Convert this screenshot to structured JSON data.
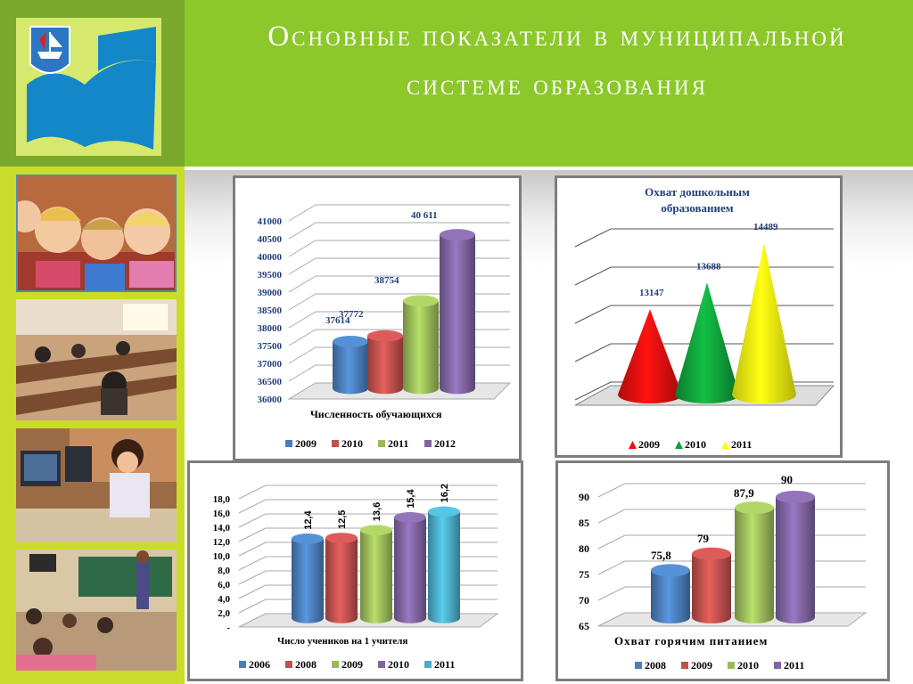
{
  "page": {
    "title": "Основные показатели в муниципальной системе образования"
  },
  "logo": {
    "icon": "coat-of-arms-icon"
  },
  "photos": [
    {
      "name": "photo-children-icon"
    },
    {
      "name": "photo-classroom-desks-icon"
    },
    {
      "name": "photo-computer-class-icon"
    },
    {
      "name": "photo-classroom-board-icon"
    }
  ],
  "colors": {
    "blue": "#4a7ebb",
    "red": "#c0504d",
    "green": "#9bbb59",
    "purple": "#8064a2",
    "cyan": "#4bacc6",
    "cone_red": "#e8100e",
    "cone_green": "#10a03a",
    "cone_yellow": "#ffff10",
    "header_green": "#8cc82a",
    "sidebar": "#c9dc2a"
  },
  "chart_data": [
    {
      "type": "bar",
      "title": "Численность обучающихся",
      "categories": [
        "2009",
        "2010",
        "2011",
        "2012"
      ],
      "values": [
        37614,
        37772,
        38754,
        40611
      ],
      "value_labels": [
        "37614",
        "37772",
        "38754",
        "40 611"
      ],
      "ylim": [
        36000,
        41000
      ],
      "yticks": [
        "36000",
        "36500",
        "37000",
        "37500",
        "38000",
        "38500",
        "39000",
        "39500",
        "40000",
        "40500",
        "41000"
      ],
      "legend": [
        "2009",
        "2010",
        "2011",
        "2012"
      ],
      "legend_position": "bottom",
      "grid": true
    },
    {
      "type": "bar",
      "title": "Охват дошкольным образованием",
      "categories": [
        "2009",
        "2010",
        "2011"
      ],
      "values": [
        13147,
        13688,
        14489
      ],
      "value_labels": [
        "13147",
        "13688",
        "14489"
      ],
      "legend": [
        "2009",
        "2010",
        "2011"
      ],
      "legend_position": "bottom",
      "grid": true
    },
    {
      "type": "bar",
      "title": "Число учеников на 1 учителя",
      "categories": [
        "2006",
        "2008",
        "2009",
        "2010",
        "2011"
      ],
      "values": [
        12.4,
        12.5,
        13.6,
        15.4,
        16.2
      ],
      "value_labels": [
        "12,4",
        "12,5",
        "13,6",
        "15,4",
        "16,2"
      ],
      "ylim": [
        0,
        18
      ],
      "yticks": [
        "-",
        "2,0",
        "4,0",
        "6,0",
        "8,0",
        "10,0",
        "12,0",
        "14,0",
        "16,0",
        "18,0"
      ],
      "legend": [
        "2006",
        "2008",
        "2009",
        "2010",
        "2011"
      ],
      "legend_position": "bottom",
      "grid": true
    },
    {
      "type": "bar",
      "title": "Охват горячим питанием",
      "categories": [
        "2008",
        "2009",
        "2010",
        "2011"
      ],
      "values": [
        75.8,
        79,
        87.9,
        90
      ],
      "value_labels": [
        "75,8",
        "79",
        "87,9",
        "90"
      ],
      "ylim": [
        65,
        90
      ],
      "yticks": [
        "65",
        "70",
        "75",
        "80",
        "85",
        "90"
      ],
      "legend": [
        "2008",
        "2009",
        "2010",
        "2011"
      ],
      "legend_position": "bottom",
      "grid": true
    }
  ]
}
